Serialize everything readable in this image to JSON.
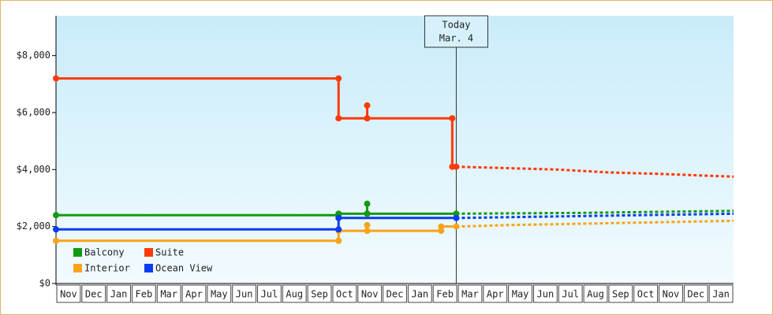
{
  "chart_data": {
    "type": "line",
    "ylim": [
      0,
      9400
    ],
    "yticks": [
      {
        "value": 0,
        "label": "$0"
      },
      {
        "value": 2000,
        "label": "$2,000"
      },
      {
        "value": 4000,
        "label": "$4,000"
      },
      {
        "value": 6000,
        "label": "$6,000"
      },
      {
        "value": 8000,
        "label": "$8,000"
      }
    ],
    "xlim": [
      0,
      27
    ],
    "categories": [
      "Nov",
      "Dec",
      "Jan",
      "Feb",
      "Mar",
      "Apr",
      "May",
      "Jun",
      "Jul",
      "Aug",
      "Sep",
      "Oct",
      "Nov",
      "Dec",
      "Jan",
      "Feb",
      "Mar",
      "Apr",
      "May",
      "Jun",
      "Jul",
      "Aug",
      "Sep",
      "Oct",
      "Nov",
      "Dec",
      "Jan"
    ],
    "annotation": {
      "x": 15.95,
      "lines": [
        "Today",
        "Mar. 4"
      ]
    },
    "legend": "lower left",
    "series": [
      {
        "name": "Balcony",
        "color": "#139a13",
        "x": [
          0,
          11.26,
          11.26,
          12.4,
          12.4,
          12.4,
          15.95
        ],
        "values": [
          2400,
          2400,
          2450,
          2450,
          2800,
          2450,
          2450
        ],
        "forecast": {
          "x": [
            15.95,
            21,
            27
          ],
          "values": [
            2450,
            2480,
            2550
          ]
        }
      },
      {
        "name": "Suite",
        "color": "#ff3a0a",
        "x": [
          0,
          11.26,
          11.26,
          12.4,
          12.4,
          12.4,
          15.79,
          15.79,
          15.95
        ],
        "values": [
          7200,
          7200,
          5800,
          5800,
          6250,
          5800,
          5800,
          4100,
          4100
        ],
        "forecast": {
          "x": [
            15.95,
            18,
            20,
            22,
            24,
            27
          ],
          "values": [
            4100,
            4050,
            4000,
            3900,
            3850,
            3750
          ]
        }
      },
      {
        "name": "Interior",
        "color": "#f7a41c",
        "x": [
          0,
          11.26,
          11.26,
          12.4,
          12.4,
          12.4,
          15.35,
          15.35,
          15.95
        ],
        "values": [
          1500,
          1500,
          1850,
          1850,
          2050,
          1850,
          1850,
          2000,
          2000
        ],
        "forecast": {
          "x": [
            15.95,
            18,
            21,
            24,
            27
          ],
          "values": [
            2000,
            2050,
            2100,
            2150,
            2200
          ]
        }
      },
      {
        "name": "Ocean View",
        "color": "#0a3cf0",
        "x": [
          0,
          11.26,
          11.26,
          15.95
        ],
        "values": [
          1900,
          1900,
          2300,
          2300
        ],
        "forecast": {
          "x": [
            15.95,
            27
          ],
          "values": [
            2300,
            2450
          ]
        }
      }
    ]
  }
}
